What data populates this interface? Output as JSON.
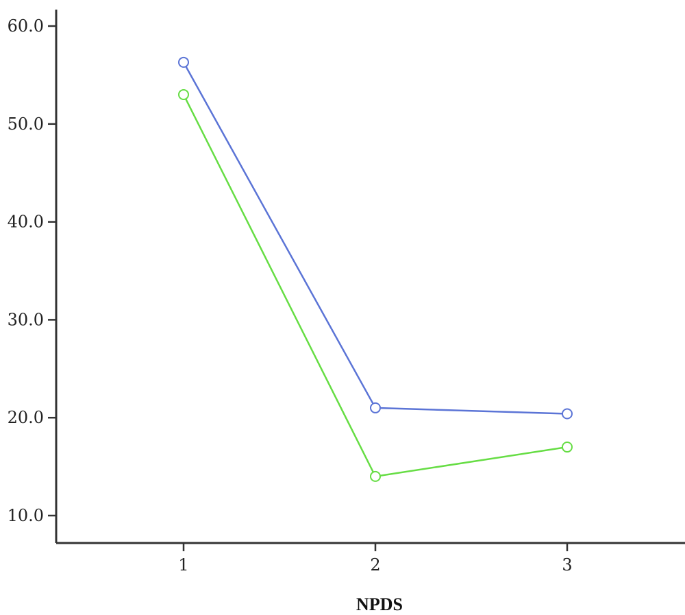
{
  "chart_data": {
    "type": "line",
    "title": "",
    "xlabel": "NPDS",
    "ylabel": "",
    "x": [
      1,
      2,
      3
    ],
    "x_tick_labels": [
      "1",
      "2",
      "3"
    ],
    "ylim": [
      10.0,
      60.0
    ],
    "y_ticks": [
      10.0,
      20.0,
      30.0,
      40.0,
      50.0,
      60.0
    ],
    "y_tick_labels": [
      "10.0",
      "20.0",
      "30.0",
      "40.0",
      "50.0",
      "60.0"
    ],
    "grid": false,
    "legend": "none",
    "series": [
      {
        "color": "#5b74d6",
        "values": [
          56.3,
          21.0,
          20.4
        ]
      },
      {
        "color": "#66dd44",
        "values": [
          53.0,
          14.0,
          17.0
        ]
      }
    ]
  }
}
